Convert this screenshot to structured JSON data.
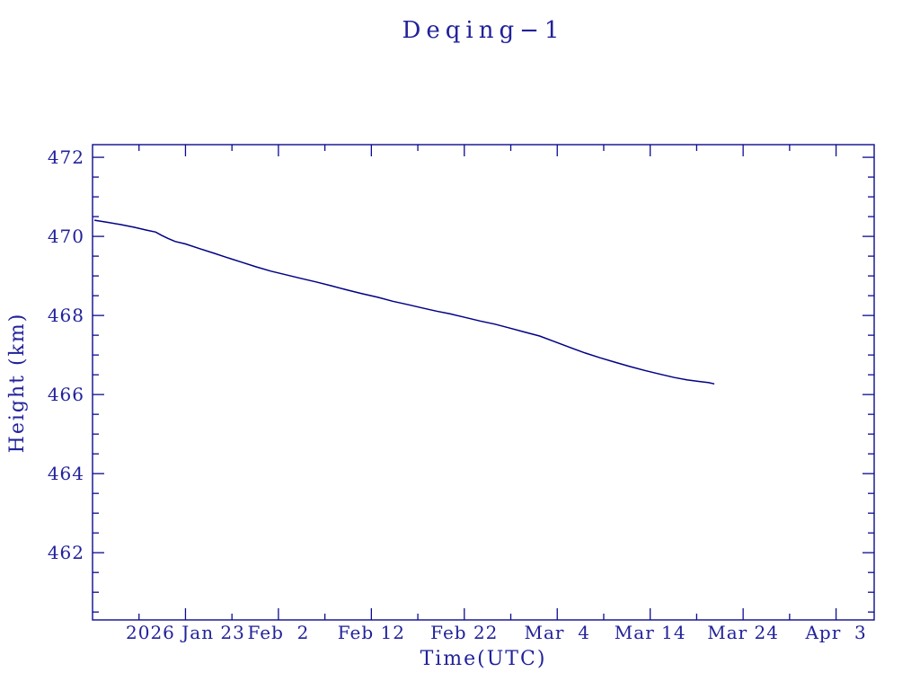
{
  "window": {
    "background": "#ffffff"
  },
  "style": {
    "text_color": "#21219b",
    "line_color": "#000085",
    "frame_color": "#0b0b8f"
  },
  "chart_data": {
    "type": "line",
    "title": "Deqing−1",
    "xlabel": "Time(UTC)",
    "ylabel": "Height (km)",
    "legend": "none",
    "grid": false,
    "x_axis": {
      "epoch": "2026-01-13",
      "unit": "days since epoch",
      "lim": [
        0,
        84.1
      ],
      "major_tick_days": [
        10,
        20,
        30,
        40,
        50,
        60,
        70,
        80
      ],
      "major_tick_labels": [
        "2026 Jan 23",
        "Feb  2",
        "Feb 12",
        "Feb 22",
        "Mar  4",
        "Mar 14",
        "Mar 24",
        "Apr  3"
      ],
      "minor_tick_days": [
        5,
        15,
        25,
        35,
        45,
        55,
        65,
        75
      ]
    },
    "y_axis": {
      "lim": [
        460.3,
        472.32
      ],
      "major_ticks": [
        472,
        470,
        468,
        466,
        464,
        462
      ],
      "major_tick_labels": [
        "472",
        "470",
        "468",
        "466",
        "464",
        "462"
      ],
      "minor_step": 0.5
    },
    "points": [
      [
        0.2,
        470.41
      ],
      [
        1.5,
        470.36
      ],
      [
        3.0,
        470.3
      ],
      [
        4.5,
        470.23
      ],
      [
        5.8,
        470.16
      ],
      [
        6.8,
        470.11
      ],
      [
        7.4,
        470.03
      ],
      [
        8.1,
        469.95
      ],
      [
        8.9,
        469.87
      ],
      [
        10.0,
        469.81
      ],
      [
        11.5,
        469.69
      ],
      [
        13.0,
        469.58
      ],
      [
        14.4,
        469.47
      ],
      [
        16.0,
        469.35
      ],
      [
        17.6,
        469.23
      ],
      [
        19.2,
        469.12
      ],
      [
        20.8,
        469.03
      ],
      [
        22.4,
        468.94
      ],
      [
        24.0,
        468.85
      ],
      [
        25.7,
        468.75
      ],
      [
        27.3,
        468.65
      ],
      [
        29.0,
        468.55
      ],
      [
        30.7,
        468.46
      ],
      [
        32.3,
        468.36
      ],
      [
        34.0,
        468.27
      ],
      [
        35.5,
        468.19
      ],
      [
        37.0,
        468.11
      ],
      [
        38.5,
        468.04
      ],
      [
        40.1,
        467.95
      ],
      [
        41.7,
        467.86
      ],
      [
        43.3,
        467.78
      ],
      [
        44.9,
        467.68
      ],
      [
        46.5,
        467.58
      ],
      [
        48.1,
        467.48
      ],
      [
        49.7,
        467.34
      ],
      [
        51.4,
        467.19
      ],
      [
        53.0,
        467.05
      ],
      [
        54.6,
        466.93
      ],
      [
        56.2,
        466.82
      ],
      [
        57.8,
        466.71
      ],
      [
        59.4,
        466.61
      ],
      [
        61.0,
        466.52
      ],
      [
        62.6,
        466.43
      ],
      [
        64.0,
        466.37
      ],
      [
        65.3,
        466.33
      ],
      [
        66.3,
        466.3
      ],
      [
        66.9,
        466.27
      ]
    ]
  }
}
